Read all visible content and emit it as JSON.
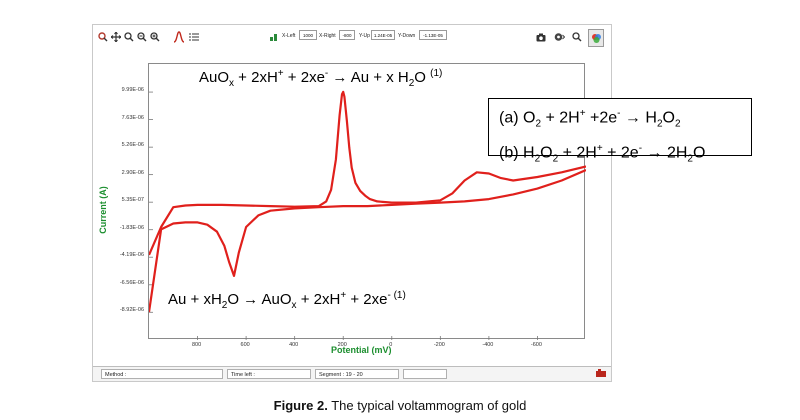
{
  "toolbar": {
    "x_left_label": "X-Left",
    "x_left_value": "1000",
    "x_right_label": "X-Right",
    "x_right_value": "-800",
    "y_up_label": "Y-Up",
    "y_up_value": "1.24E-05",
    "y_down_label": "Y-Down",
    "y_down_value": "-1.13E-05",
    "icons_left": [
      "zoom-in-icon",
      "pan-icon",
      "zoom-icon",
      "zoom-out-icon",
      "zoom-fit-icon",
      "peak-icon",
      "list-icon"
    ],
    "icons_right": [
      "camera-icon",
      "settings-icon",
      "search-icon",
      "color-wheel-icon"
    ]
  },
  "equations": {
    "top": {
      "lhs_main": "AuO",
      "lhs_sub": "x",
      "lhs_rest": " + 2xH",
      "lhs_sup1": "+",
      "mid": " + 2xe",
      "mid_sup": "-",
      "arrow_rest": " → Au + x H",
      "h2o_sub": "2",
      "tail": "O ",
      "ref": "(1)"
    },
    "bottom": {
      "a": "Au + xH",
      "a_sub": "2",
      "b": "O → AuO",
      "b_sub": "x",
      "c": " + 2xH",
      "c_sup": "+",
      "d": " + 2xe",
      "d_sup": "-",
      "ref": " (1)"
    },
    "box": {
      "line1_a": "(a) O",
      "line1_a_sub": "2",
      "line1_b": " + 2H",
      "line1_b_sup": "+",
      "line1_c": " +2e",
      "line1_c_sup": "-",
      "line1_d": " → H",
      "line1_d_sub": "2",
      "line1_e": "O",
      "line1_e_sub": "2",
      "line2_a": "(b) H",
      "line2_a_sub": "2",
      "line2_b": "O",
      "line2_b_sub": "2",
      "line2_c": " + 2H",
      "line2_c_sup": "+",
      "line2_d": " + 2e",
      "line2_d_sup": "-",
      "line2_e": " →  2H",
      "line2_e_sub": "2",
      "line2_f": "O"
    }
  },
  "statusbar": {
    "method_label": "Method :",
    "time_left_label": "Time left :",
    "segment_label": "Segment : 19 - 20"
  },
  "caption": {
    "bold": "Figure 2.",
    "text": " The typical voltammogram of gold"
  },
  "chart_data": {
    "type": "line",
    "title": "",
    "xlabel": "Potential (mV)",
    "ylabel": "Current (A)",
    "xlim": [
      1000,
      -800
    ],
    "ylim": [
      -1.13e-05,
      1.24e-05
    ],
    "xticks": [
      800,
      600,
      400,
      200,
      0,
      -200,
      -400,
      -600
    ],
    "xtick_labels": [
      "800",
      "600",
      "400",
      "200",
      "0",
      "-200",
      "-400",
      "-600"
    ],
    "yticks": [
      9.99e-06,
      7.63e-06,
      5.26e-06,
      2.9e-06,
      5.35e-07,
      -1.83e-06,
      -4.19e-06,
      -6.56e-06,
      -8.92e-06
    ],
    "ytick_labels": [
      "9.99E-06",
      "7.63E-06",
      "5.26E-06",
      "2.90E-06",
      "5.35E-07",
      "-1.83E-06",
      "-4.19E-06",
      "-6.56E-06",
      "-8.92E-06"
    ],
    "grid": false,
    "line_color": "#e0201c",
    "series": [
      {
        "x": [
          1000,
          950,
          900,
          850,
          800,
          700,
          600,
          500,
          400,
          300,
          270,
          250,
          230,
          215,
          205,
          200,
          195,
          185,
          175,
          165,
          150,
          130,
          110,
          90,
          60,
          0,
          -100,
          -200,
          -250,
          -300,
          -350,
          -400,
          -450,
          -500,
          -600,
          -700,
          -800
        ],
        "y": [
          -4e-06,
          -1.6e-06,
          1e-07,
          2.5e-07,
          3e-07,
          3e-07,
          2.5e-07,
          2e-07,
          1.5e-07,
          2e-07,
          6e-07,
          1.6e-06,
          4.2e-06,
          8e-06,
          9.8e-06,
          1e-05,
          9.6e-06,
          7.5e-06,
          5.2e-06,
          3.5e-06,
          2.2e-06,
          1.5e-06,
          1.1e-06,
          8e-07,
          6e-07,
          5e-07,
          5e-07,
          7e-07,
          1.3e-06,
          2.4e-06,
          3.1e-06,
          3e-06,
          2.6e-06,
          2.4e-06,
          2.7e-06,
          3.1e-06,
          3.6e-06
        ]
      },
      {
        "x": [
          -800,
          -700,
          -600,
          -500,
          -400,
          -300,
          -200,
          -100,
          0,
          100,
          200,
          300,
          400,
          500,
          550,
          600,
          630,
          650,
          670,
          690,
          720,
          760,
          800,
          850,
          900,
          950,
          1000
        ],
        "y": [
          3.3e-06,
          2.4e-06,
          1.7e-06,
          1.2e-06,
          8e-07,
          6e-07,
          5e-07,
          4e-07,
          3e-07,
          2e-07,
          2e-07,
          1e-07,
          0.0,
          -2e-07,
          -6e-07,
          -1.6e-06,
          -3.8e-06,
          -5.8e-06,
          -4.6e-06,
          -3.2e-06,
          -2e-06,
          -1.4e-06,
          -1.2e-06,
          -1.2e-06,
          -1.3e-06,
          -1.8e-06,
          -8.9e-06
        ]
      }
    ]
  }
}
